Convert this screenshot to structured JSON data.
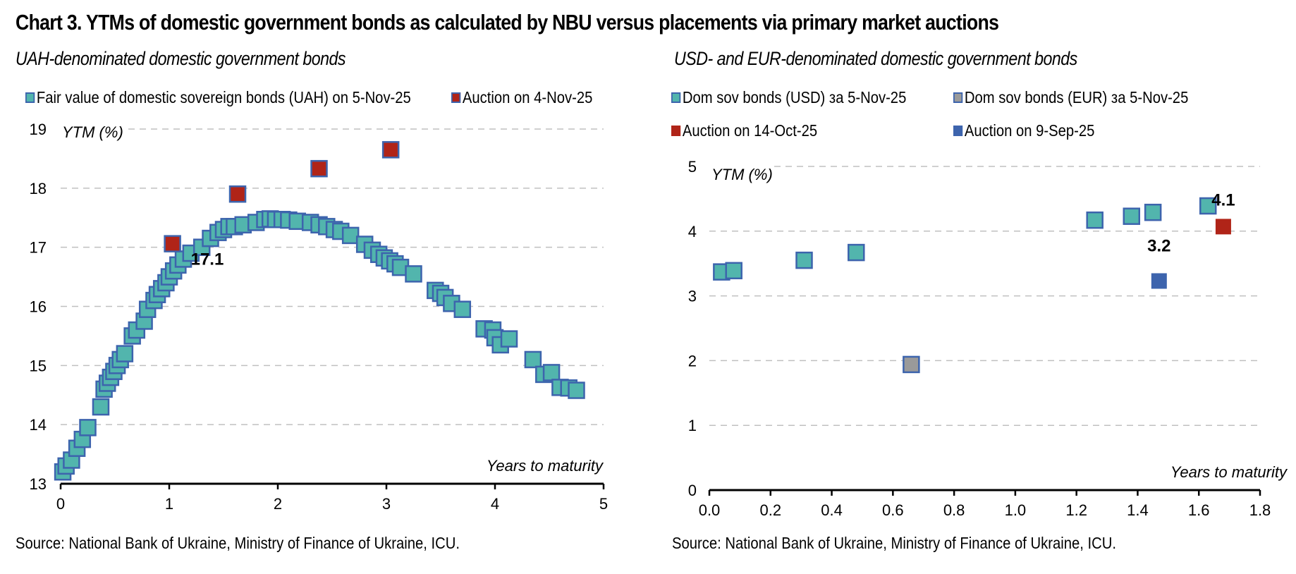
{
  "title": "Chart 3. YTMs of domestic government bonds as calculated by NBU versus placements via primary market auctions",
  "colors": {
    "teal": "#52b5ad",
    "teal_border": "#3d64ad",
    "red": "#b02418",
    "blue": "#3d64ad",
    "gray": "#9a9a9a",
    "grid": "#c0c0c0"
  },
  "chart_data": [
    {
      "type": "scatter",
      "title": "UAH-denominated domestic government bonds",
      "xlabel": "Years to maturity",
      "ylabel": "YTM (%)",
      "xlim": [
        0,
        5
      ],
      "ylim": [
        13,
        19
      ],
      "x_ticks": [
        "0",
        "1",
        "2",
        "3",
        "4",
        "5"
      ],
      "y_ticks": [
        "13",
        "14",
        "15",
        "16",
        "17",
        "18",
        "19"
      ],
      "grid": "horizontal dashed",
      "legend_position": "top",
      "series": [
        {
          "name": "Fair value of domestic sovereign bonds (UAH) on 5-Nov-25",
          "color": "teal",
          "points": [
            [
              0.02,
              13.2
            ],
            [
              0.05,
              13.3
            ],
            [
              0.1,
              13.4
            ],
            [
              0.15,
              13.6
            ],
            [
              0.2,
              13.75
            ],
            [
              0.25,
              13.95
            ],
            [
              0.37,
              14.3
            ],
            [
              0.4,
              14.6
            ],
            [
              0.43,
              14.7
            ],
            [
              0.46,
              14.8
            ],
            [
              0.49,
              14.9
            ],
            [
              0.52,
              15.0
            ],
            [
              0.55,
              15.1
            ],
            [
              0.59,
              15.2
            ],
            [
              0.66,
              15.5
            ],
            [
              0.7,
              15.6
            ],
            [
              0.77,
              15.75
            ],
            [
              0.8,
              15.95
            ],
            [
              0.86,
              16.1
            ],
            [
              0.89,
              16.2
            ],
            [
              0.93,
              16.3
            ],
            [
              0.97,
              16.4
            ],
            [
              1.0,
              16.5
            ],
            [
              1.04,
              16.6
            ],
            [
              1.08,
              16.7
            ],
            [
              1.13,
              16.8
            ],
            [
              1.2,
              16.9
            ],
            [
              1.3,
              17.0
            ],
            [
              1.38,
              17.15
            ],
            [
              1.45,
              17.25
            ],
            [
              1.5,
              17.3
            ],
            [
              1.55,
              17.35
            ],
            [
              1.6,
              17.35
            ],
            [
              1.68,
              17.38
            ],
            [
              1.8,
              17.42
            ],
            [
              1.88,
              17.47
            ],
            [
              1.93,
              17.48
            ],
            [
              1.98,
              17.47
            ],
            [
              2.04,
              17.47
            ],
            [
              2.1,
              17.46
            ],
            [
              2.18,
              17.44
            ],
            [
              2.3,
              17.42
            ],
            [
              2.38,
              17.38
            ],
            [
              2.45,
              17.35
            ],
            [
              2.52,
              17.3
            ],
            [
              2.58,
              17.27
            ],
            [
              2.67,
              17.2
            ],
            [
              2.8,
              17.05
            ],
            [
              2.87,
              16.95
            ],
            [
              2.93,
              16.88
            ],
            [
              2.98,
              16.82
            ],
            [
              3.03,
              16.77
            ],
            [
              3.08,
              16.72
            ],
            [
              3.13,
              16.66
            ],
            [
              3.25,
              16.55
            ],
            [
              3.45,
              16.27
            ],
            [
              3.5,
              16.22
            ],
            [
              3.54,
              16.15
            ],
            [
              3.6,
              16.05
            ],
            [
              3.7,
              15.95
            ],
            [
              3.9,
              15.62
            ],
            [
              3.98,
              15.6
            ],
            [
              4.0,
              15.47
            ],
            [
              4.05,
              15.35
            ],
            [
              4.13,
              15.45
            ],
            [
              4.35,
              15.1
            ],
            [
              4.45,
              14.85
            ],
            [
              4.52,
              14.88
            ],
            [
              4.6,
              14.63
            ],
            [
              4.68,
              14.62
            ],
            [
              4.75,
              14.58
            ]
          ]
        },
        {
          "name": "Auction on 4-Nov-25",
          "color": "red",
          "points": [
            [
              1.03,
              17.06
            ],
            [
              1.63,
              17.9
            ],
            [
              2.38,
              18.33
            ],
            [
              3.04,
              18.65
            ]
          ]
        }
      ],
      "annotations": [
        {
          "text": "17.1",
          "x": 1.03,
          "y": 17.06
        }
      ]
    },
    {
      "type": "scatter",
      "title": "USD- and EUR-denominated domestic government bonds",
      "xlabel": "Years to maturity",
      "ylabel": "YTM (%)",
      "xlim": [
        0,
        1.8
      ],
      "ylim": [
        0,
        5
      ],
      "x_ticks": [
        "0.0",
        "0.2",
        "0.4",
        "0.6",
        "0.8",
        "1.0",
        "1.2",
        "1.4",
        "1.6",
        "1.8"
      ],
      "y_ticks": [
        "0",
        "1",
        "2",
        "3",
        "4",
        "5"
      ],
      "grid": "horizontal dashed",
      "legend_position": "top",
      "series": [
        {
          "name": "Dom sov bonds (USD) за 5-Nov-25",
          "color": "teal",
          "points": [
            [
              0.04,
              3.37
            ],
            [
              0.08,
              3.39
            ],
            [
              0.31,
              3.55
            ],
            [
              0.48,
              3.67
            ],
            [
              1.26,
              4.17
            ],
            [
              1.38,
              4.23
            ],
            [
              1.45,
              4.29
            ],
            [
              1.63,
              4.39
            ]
          ]
        },
        {
          "name": "Dom sov bonds (EUR) за 5-Nov-25",
          "color": "gray",
          "points": [
            [
              0.66,
              1.94
            ]
          ]
        },
        {
          "name": "Auction on 14-Oct-25",
          "color": "red",
          "points": [
            [
              1.68,
              4.07
            ]
          ]
        },
        {
          "name": "Auction on 9-Sep-25",
          "color": "blue",
          "points": [
            [
              1.47,
              3.23
            ]
          ]
        }
      ],
      "annotations": [
        {
          "text": "3.2",
          "x": 1.47,
          "y": 3.23
        },
        {
          "text": "4.1",
          "x": 1.68,
          "y": 4.07
        }
      ]
    }
  ],
  "source_left": "Source: National Bank of Ukraine, Ministry of Finance of Ukraine, ICU.",
  "source_right": "Source: National Bank of Ukraine, Ministry of Finance of Ukraine, ICU."
}
